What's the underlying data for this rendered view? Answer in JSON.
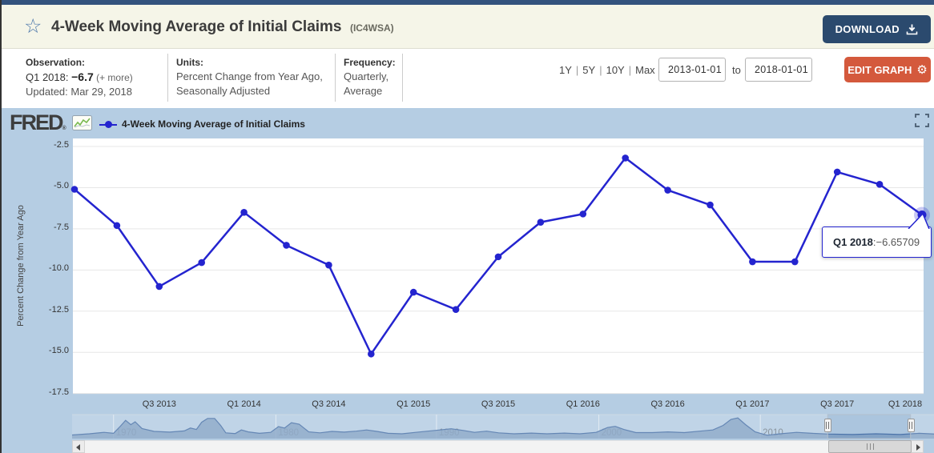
{
  "header": {
    "title": "4-Week Moving Average of Initial Claims",
    "series_id": "(IC4WSA)",
    "download_label": "DOWNLOAD"
  },
  "icons": {
    "star": "☆",
    "gear": "⚙"
  },
  "meta": {
    "observation_label": "Observation:",
    "observation_period": "Q1 2018: ",
    "observation_value": "−6.7",
    "observation_more": " (+ more)",
    "updated": "Updated: Mar 29, 2018",
    "units_label": "Units:",
    "units_line1": "Percent Change from Year Ago,",
    "units_line2": "Seasonally Adjusted",
    "frequency_label": "Frequency:",
    "frequency_line1": "Quarterly,",
    "frequency_line2": "Average"
  },
  "range_controls": {
    "presets": [
      "1Y",
      "5Y",
      "10Y",
      "Max"
    ],
    "separator": "|",
    "start_date": "2013-01-01",
    "to_label": "to",
    "end_date": "2018-01-01",
    "edit_label": "EDIT GRAPH"
  },
  "chart_header": {
    "logo": "FRED",
    "logo_reg": "®",
    "legend_label": "4-Week Moving Average of Initial Claims"
  },
  "tooltip": {
    "label": "Q1 2018",
    "separator": ": ",
    "value": "−6.65709"
  },
  "colors": {
    "line": "#2424cf",
    "chart_bg": "#b5cde3",
    "header_bg": "#f5f5e8",
    "download_btn": "#2b4a6e",
    "edit_btn": "#d4593c",
    "nav_fill": "#7e9dc1"
  },
  "chart_data": {
    "type": "line",
    "title": "4-Week Moving Average of Initial Claims",
    "ylabel": "Percent Change from Year Ago",
    "xlabel": "",
    "x": [
      "Q1 2013",
      "Q2 2013",
      "Q3 2013",
      "Q4 2013",
      "Q1 2014",
      "Q2 2014",
      "Q3 2014",
      "Q4 2014",
      "Q1 2015",
      "Q2 2015",
      "Q3 2015",
      "Q4 2015",
      "Q1 2016",
      "Q2 2016",
      "Q3 2016",
      "Q4 2016",
      "Q1 2017",
      "Q2 2017",
      "Q3 2017",
      "Q4 2017",
      "Q1 2018"
    ],
    "values": [
      -5.1,
      -7.3,
      -11.0,
      -9.55,
      -6.5,
      -8.5,
      -9.7,
      -15.1,
      -11.35,
      -12.4,
      -9.2,
      -7.1,
      -6.6,
      -3.2,
      -5.15,
      -6.05,
      -9.5,
      -9.5,
      -4.05,
      -4.8,
      -6.65709
    ],
    "highlight_index": 20,
    "x_tick_labels": [
      "Q3 2013",
      "Q1 2014",
      "Q3 2014",
      "Q1 2015",
      "Q3 2015",
      "Q1 2016",
      "Q3 2016",
      "Q1 2017",
      "Q3 2017",
      "Q1 2018"
    ],
    "x_tick_indices": [
      2,
      4,
      6,
      8,
      10,
      12,
      14,
      16,
      18,
      20
    ],
    "y_ticks": [
      -2.5,
      -5,
      -7.5,
      -10,
      -12.5,
      -15,
      -17.5
    ],
    "y_tick_labels": [
      "-2.5",
      "-5.0",
      "-7.5",
      "-10.0",
      "-12.5",
      "-15.0",
      "-17.5"
    ],
    "ylim": [
      -17.5,
      -2.5
    ],
    "grid": true,
    "legend_position": "top-left",
    "line_color": "#2424cf",
    "navigator": {
      "years": [
        {
          "label": "1970",
          "fx": 0.048
        },
        {
          "label": "1980",
          "fx": 0.236
        },
        {
          "label": "1990",
          "fx": 0.422
        },
        {
          "label": "2000",
          "fx": 0.61
        },
        {
          "label": "2010",
          "fx": 0.797
        }
      ],
      "selection": [
        0.875,
        0.971
      ],
      "shape": [
        [
          0,
          0.15
        ],
        [
          0.02,
          0.2
        ],
        [
          0.037,
          0.26
        ],
        [
          0.048,
          0.22
        ],
        [
          0.056,
          0.52
        ],
        [
          0.062,
          0.76
        ],
        [
          0.068,
          0.58
        ],
        [
          0.073,
          0.7
        ],
        [
          0.081,
          0.42
        ],
        [
          0.095,
          0.3
        ],
        [
          0.113,
          0.27
        ],
        [
          0.13,
          0.32
        ],
        [
          0.137,
          0.44
        ],
        [
          0.144,
          0.38
        ],
        [
          0.15,
          0.68
        ],
        [
          0.157,
          0.84
        ],
        [
          0.165,
          0.84
        ],
        [
          0.172,
          0.55
        ],
        [
          0.178,
          0.24
        ],
        [
          0.189,
          0.21
        ],
        [
          0.196,
          0.36
        ],
        [
          0.204,
          0.28
        ],
        [
          0.217,
          0.22
        ],
        [
          0.23,
          0.26
        ],
        [
          0.239,
          0.5
        ],
        [
          0.246,
          0.44
        ],
        [
          0.254,
          0.66
        ],
        [
          0.263,
          0.6
        ],
        [
          0.274,
          0.28
        ],
        [
          0.287,
          0.24
        ],
        [
          0.301,
          0.3
        ],
        [
          0.315,
          0.27
        ],
        [
          0.329,
          0.31
        ],
        [
          0.341,
          0.36
        ],
        [
          0.353,
          0.3
        ],
        [
          0.366,
          0.22
        ],
        [
          0.382,
          0.2
        ],
        [
          0.398,
          0.26
        ],
        [
          0.412,
          0.31
        ],
        [
          0.426,
          0.36
        ],
        [
          0.439,
          0.41
        ],
        [
          0.453,
          0.34
        ],
        [
          0.466,
          0.26
        ],
        [
          0.48,
          0.31
        ],
        [
          0.494,
          0.24
        ],
        [
          0.512,
          0.2
        ],
        [
          0.532,
          0.23
        ],
        [
          0.55,
          0.2
        ],
        [
          0.57,
          0.23
        ],
        [
          0.588,
          0.2
        ],
        [
          0.607,
          0.26
        ],
        [
          0.62,
          0.46
        ],
        [
          0.629,
          0.51
        ],
        [
          0.639,
          0.38
        ],
        [
          0.653,
          0.25
        ],
        [
          0.672,
          0.25
        ],
        [
          0.69,
          0.28
        ],
        [
          0.709,
          0.25
        ],
        [
          0.727,
          0.31
        ],
        [
          0.742,
          0.36
        ],
        [
          0.754,
          0.55
        ],
        [
          0.763,
          0.8
        ],
        [
          0.771,
          0.86
        ],
        [
          0.78,
          0.58
        ],
        [
          0.791,
          0.28
        ],
        [
          0.805,
          0.14
        ],
        [
          0.82,
          0.2
        ],
        [
          0.839,
          0.26
        ],
        [
          0.857,
          0.22
        ],
        [
          0.876,
          0.19
        ],
        [
          0.904,
          0.17
        ],
        [
          0.931,
          0.2
        ],
        [
          0.959,
          0.17
        ],
        [
          0.981,
          0.22
        ],
        [
          1,
          0.19
        ]
      ]
    }
  }
}
